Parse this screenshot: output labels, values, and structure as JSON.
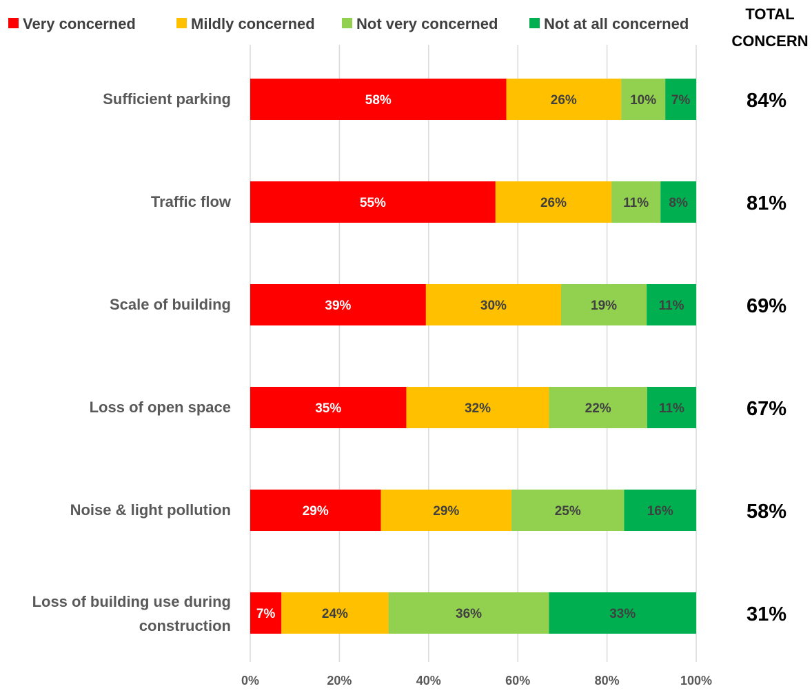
{
  "chart_data": {
    "type": "bar",
    "orientation": "horizontal",
    "stacked": true,
    "categories": [
      "Sufficient parking",
      "Traffic flow",
      "Scale of building",
      "Loss of open space",
      "Noise & light pollution",
      "Loss of building use during construction"
    ],
    "series": [
      {
        "name": "Very concerned",
        "color": "#FF0000",
        "label_color": "#FFFFFF",
        "values": [
          58,
          55,
          39,
          35,
          29,
          7
        ]
      },
      {
        "name": "Mildly concerned",
        "color": "#FFC000",
        "label_color": "#404040",
        "values": [
          26,
          26,
          30,
          32,
          29,
          24
        ]
      },
      {
        "name": "Not very concerned",
        "color": "#92D050",
        "label_color": "#404040",
        "values": [
          10,
          11,
          19,
          22,
          25,
          36
        ]
      },
      {
        "name": "Not at all concerned",
        "color": "#00B050",
        "label_color": "#404040",
        "values": [
          7,
          8,
          11,
          11,
          16,
          33
        ]
      }
    ],
    "total_concern_title": [
      "TOTAL",
      "CONCERN"
    ],
    "total_concern": [
      "84%",
      "81%",
      "69%",
      "67%",
      "58%",
      "31%"
    ],
    "x_ticks": [
      "0%",
      "20%",
      "40%",
      "60%",
      "80%",
      "100%"
    ],
    "xlim": [
      0,
      100
    ],
    "grid": true,
    "legend_position": "top"
  }
}
